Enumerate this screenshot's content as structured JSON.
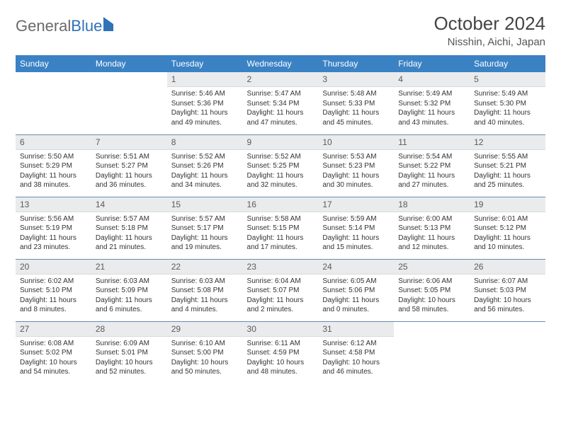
{
  "brand": {
    "part1": "General",
    "part2": "Blue"
  },
  "title": "October 2024",
  "location": "Nisshin, Aichi, Japan",
  "day_headers": [
    "Sunday",
    "Monday",
    "Tuesday",
    "Wednesday",
    "Thursday",
    "Friday",
    "Saturday"
  ],
  "colors": {
    "header_bg": "#3b82c4",
    "header_text": "#ffffff",
    "daynum_bg": "#e9ebec",
    "row_divider": "#6a8bb0",
    "brand_gray": "#6a6a6a",
    "brand_blue": "#2f72b8"
  },
  "weeks": [
    [
      null,
      null,
      {
        "d": "1",
        "sr": "5:46 AM",
        "ss": "5:36 PM",
        "dl": "11 hours and 49 minutes."
      },
      {
        "d": "2",
        "sr": "5:47 AM",
        "ss": "5:34 PM",
        "dl": "11 hours and 47 minutes."
      },
      {
        "d": "3",
        "sr": "5:48 AM",
        "ss": "5:33 PM",
        "dl": "11 hours and 45 minutes."
      },
      {
        "d": "4",
        "sr": "5:49 AM",
        "ss": "5:32 PM",
        "dl": "11 hours and 43 minutes."
      },
      {
        "d": "5",
        "sr": "5:49 AM",
        "ss": "5:30 PM",
        "dl": "11 hours and 40 minutes."
      }
    ],
    [
      {
        "d": "6",
        "sr": "5:50 AM",
        "ss": "5:29 PM",
        "dl": "11 hours and 38 minutes."
      },
      {
        "d": "7",
        "sr": "5:51 AM",
        "ss": "5:27 PM",
        "dl": "11 hours and 36 minutes."
      },
      {
        "d": "8",
        "sr": "5:52 AM",
        "ss": "5:26 PM",
        "dl": "11 hours and 34 minutes."
      },
      {
        "d": "9",
        "sr": "5:52 AM",
        "ss": "5:25 PM",
        "dl": "11 hours and 32 minutes."
      },
      {
        "d": "10",
        "sr": "5:53 AM",
        "ss": "5:23 PM",
        "dl": "11 hours and 30 minutes."
      },
      {
        "d": "11",
        "sr": "5:54 AM",
        "ss": "5:22 PM",
        "dl": "11 hours and 27 minutes."
      },
      {
        "d": "12",
        "sr": "5:55 AM",
        "ss": "5:21 PM",
        "dl": "11 hours and 25 minutes."
      }
    ],
    [
      {
        "d": "13",
        "sr": "5:56 AM",
        "ss": "5:19 PM",
        "dl": "11 hours and 23 minutes."
      },
      {
        "d": "14",
        "sr": "5:57 AM",
        "ss": "5:18 PM",
        "dl": "11 hours and 21 minutes."
      },
      {
        "d": "15",
        "sr": "5:57 AM",
        "ss": "5:17 PM",
        "dl": "11 hours and 19 minutes."
      },
      {
        "d": "16",
        "sr": "5:58 AM",
        "ss": "5:15 PM",
        "dl": "11 hours and 17 minutes."
      },
      {
        "d": "17",
        "sr": "5:59 AM",
        "ss": "5:14 PM",
        "dl": "11 hours and 15 minutes."
      },
      {
        "d": "18",
        "sr": "6:00 AM",
        "ss": "5:13 PM",
        "dl": "11 hours and 12 minutes."
      },
      {
        "d": "19",
        "sr": "6:01 AM",
        "ss": "5:12 PM",
        "dl": "11 hours and 10 minutes."
      }
    ],
    [
      {
        "d": "20",
        "sr": "6:02 AM",
        "ss": "5:10 PM",
        "dl": "11 hours and 8 minutes."
      },
      {
        "d": "21",
        "sr": "6:03 AM",
        "ss": "5:09 PM",
        "dl": "11 hours and 6 minutes."
      },
      {
        "d": "22",
        "sr": "6:03 AM",
        "ss": "5:08 PM",
        "dl": "11 hours and 4 minutes."
      },
      {
        "d": "23",
        "sr": "6:04 AM",
        "ss": "5:07 PM",
        "dl": "11 hours and 2 minutes."
      },
      {
        "d": "24",
        "sr": "6:05 AM",
        "ss": "5:06 PM",
        "dl": "11 hours and 0 minutes."
      },
      {
        "d": "25",
        "sr": "6:06 AM",
        "ss": "5:05 PM",
        "dl": "10 hours and 58 minutes."
      },
      {
        "d": "26",
        "sr": "6:07 AM",
        "ss": "5:03 PM",
        "dl": "10 hours and 56 minutes."
      }
    ],
    [
      {
        "d": "27",
        "sr": "6:08 AM",
        "ss": "5:02 PM",
        "dl": "10 hours and 54 minutes."
      },
      {
        "d": "28",
        "sr": "6:09 AM",
        "ss": "5:01 PM",
        "dl": "10 hours and 52 minutes."
      },
      {
        "d": "29",
        "sr": "6:10 AM",
        "ss": "5:00 PM",
        "dl": "10 hours and 50 minutes."
      },
      {
        "d": "30",
        "sr": "6:11 AM",
        "ss": "4:59 PM",
        "dl": "10 hours and 48 minutes."
      },
      {
        "d": "31",
        "sr": "6:12 AM",
        "ss": "4:58 PM",
        "dl": "10 hours and 46 minutes."
      },
      null,
      null
    ]
  ],
  "labels": {
    "sunrise": "Sunrise: ",
    "sunset": "Sunset: ",
    "daylight": "Daylight: "
  }
}
